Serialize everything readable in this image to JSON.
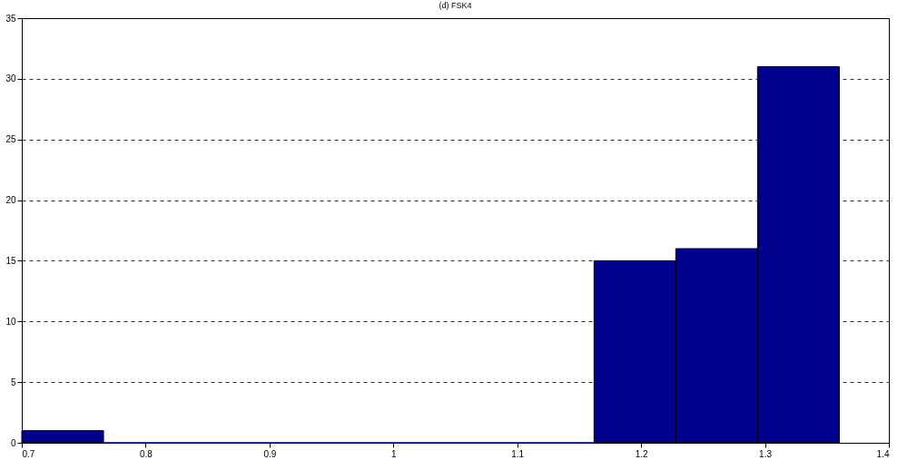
{
  "chart_data": {
    "type": "histogram",
    "title": "(d) FSK4",
    "bins": [
      0.7,
      0.766,
      0.832,
      0.898,
      0.964,
      1.03,
      1.096,
      1.162,
      1.228,
      1.294,
      1.36
    ],
    "values": [
      1,
      0,
      0,
      0,
      0,
      0,
      0,
      15,
      16,
      31
    ],
    "color": "#00008f",
    "xlim": [
      0.7,
      1.4
    ],
    "xticks": [
      0.7,
      0.8,
      0.9,
      1,
      1.1,
      1.2,
      1.3,
      1.4
    ],
    "ylim": [
      0,
      35
    ],
    "yticks": [
      0,
      5,
      10,
      15,
      20,
      25,
      30,
      35
    ],
    "grid": "y"
  }
}
